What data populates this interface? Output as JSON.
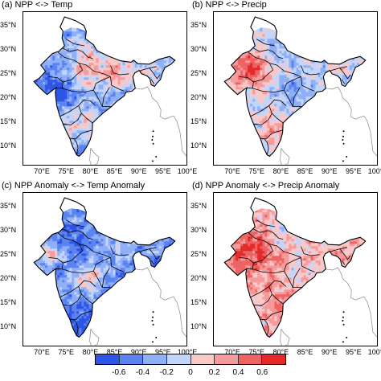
{
  "panels": [
    {
      "title": "(a) NPP <-> Temp",
      "pattern": "a"
    },
    {
      "title": "(b) NPP <-> Precip",
      "pattern": "b"
    },
    {
      "title": "(c) NPP Anomaly <-> Temp Anomaly",
      "pattern": "c"
    },
    {
      "title": "(d) NPP Anomaly <-> Precip Anomaly",
      "pattern": "d"
    }
  ],
  "lat_labels": [
    "35°N",
    "30°N",
    "25°N",
    "20°N",
    "15°N",
    "10°N"
  ],
  "lon_labels": [
    "70°E",
    "75°E",
    "80°E",
    "85°E",
    "90°E",
    "95°E",
    "100°E"
  ],
  "colorbar": {
    "ticks": [
      "-0.6",
      "-0.4",
      "-0.2",
      "0",
      "0.2",
      "0.4",
      "0.6"
    ],
    "colors": [
      "#2f55e6",
      "#5b84f2",
      "#8fb0f7",
      "#c3d5fb",
      "#f9c8c8",
      "#f59b9b",
      "#ee6363",
      "#e42b2b"
    ]
  },
  "map_colors": {
    "outline": "#000000",
    "coast": "#888888"
  }
}
